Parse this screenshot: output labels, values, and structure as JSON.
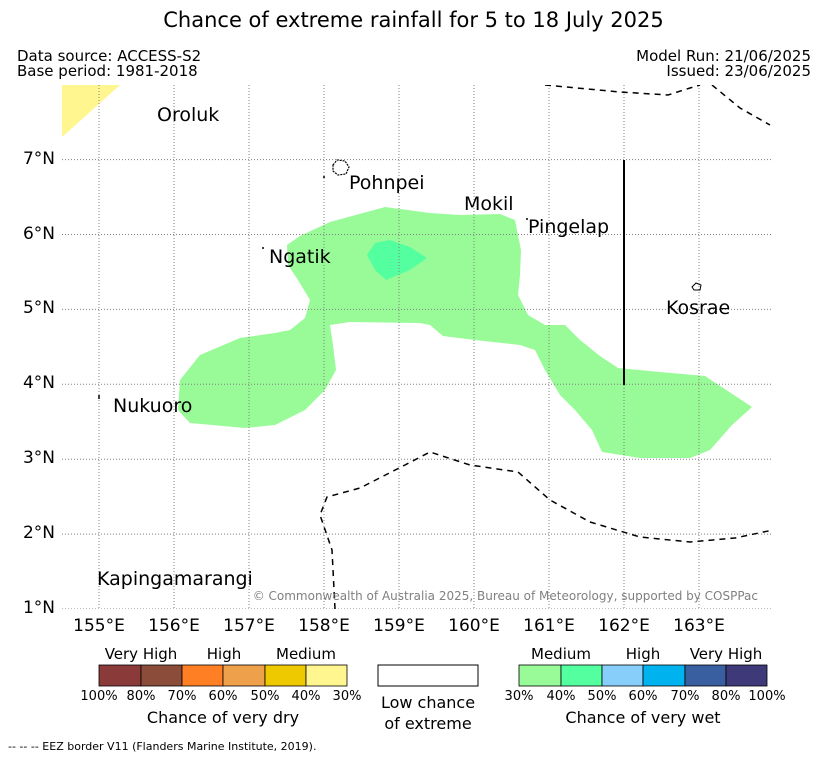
{
  "title": "Chance of extreme rainfall for 5 to 18 July 2025",
  "header": {
    "data_source": "Data source: ACCESS-S2",
    "base_period": "Base period: 1981-2018",
    "model_run": "Model Run: 21/06/2025",
    "issued": "Issued: 23/06/2025"
  },
  "map": {
    "lon_range": [
      154.5,
      164.0
    ],
    "lat_range": [
      1.0,
      8.0
    ],
    "grid": true,
    "x_ticks": [
      "155°E",
      "156°E",
      "157°E",
      "158°E",
      "159°E",
      "160°E",
      "161°E",
      "162°E",
      "163°E"
    ],
    "y_ticks": [
      "1°N",
      "2°N",
      "3°N",
      "4°N",
      "5°N",
      "6°N",
      "7°N"
    ],
    "places": {
      "oroluk": "Oroluk",
      "pohnpei": "Pohnpei",
      "mokil": "Mokil",
      "pingelap": "Pingelap",
      "ngatik": "Ngatik",
      "kosrae": "Kosrae",
      "nukuoro": "Nukuoro",
      "kapingamarangi": "Kapingamarangi"
    },
    "copyright": "© Commonwealth of Australia 2025, Bureau of Meteorology, supported by COSPPac"
  },
  "colors": {
    "very_dry_30_40": "#fff68f",
    "wet_30_40": "#98fb98",
    "wet_40_50": "#54ff9f",
    "grid": "#808080",
    "eez_border": "#000000"
  },
  "legend_dry": {
    "headers": [
      "Very High",
      "High",
      "Medium"
    ],
    "ticks": [
      "100%",
      "80%",
      "70%",
      "60%",
      "50%",
      "40%",
      "30%"
    ],
    "colors": [
      "#8b3a3a",
      "#8b4c39",
      "#ff7f24",
      "#eea04a",
      "#eec900",
      "#fff68f"
    ],
    "caption": "Chance of very dry"
  },
  "legend_low": {
    "line1": "Low chance",
    "line2": "of extreme"
  },
  "legend_wet": {
    "headers": [
      "Medium",
      "High",
      "Very High"
    ],
    "ticks": [
      "30%",
      "40%",
      "50%",
      "60%",
      "70%",
      "80%",
      "100%"
    ],
    "colors": [
      "#98fb98",
      "#54ff9f",
      "#87cefa",
      "#00b2ee",
      "#3a5fa0",
      "#3e3a7a"
    ],
    "caption": "Chance of very wet"
  },
  "footnote": "--  --  -- EEZ border V11 (Flanders Marine Institute, 2019)."
}
